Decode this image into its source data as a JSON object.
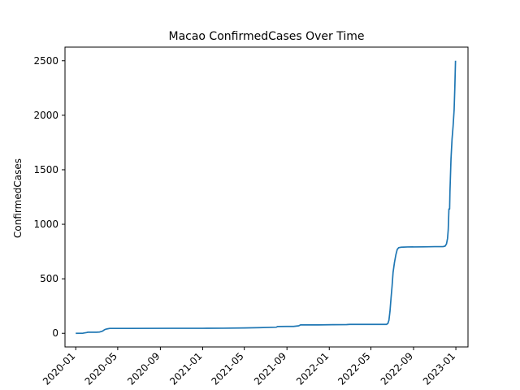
{
  "chart_data": {
    "type": "line",
    "title": "Macao  ConfirmedCases Over Time",
    "xlabel": "",
    "ylabel": "ConfirmedCases",
    "ylim": [
      -125,
      2625
    ],
    "xlim": [
      "2019-12-01",
      "2023-02-05"
    ],
    "grid": false,
    "legend": "none",
    "x_ticks": [
      "2020-01",
      "2020-05",
      "2020-09",
      "2021-01",
      "2021-05",
      "2021-09",
      "2022-01",
      "2022-05",
      "2022-09",
      "2023-01"
    ],
    "y_ticks": [
      0,
      500,
      1000,
      1500,
      2000,
      2500
    ],
    "series": [
      {
        "color": "#1f77b4",
        "points": [
          [
            "2020-01-01",
            0
          ],
          [
            "2020-01-22",
            1
          ],
          [
            "2020-02-01",
            7
          ],
          [
            "2020-02-05",
            10
          ],
          [
            "2020-03-01",
            10
          ],
          [
            "2020-03-10",
            12
          ],
          [
            "2020-03-18",
            20
          ],
          [
            "2020-03-25",
            35
          ],
          [
            "2020-04-01",
            41
          ],
          [
            "2020-04-08",
            45
          ],
          [
            "2020-06-01",
            45
          ],
          [
            "2020-10-01",
            46
          ],
          [
            "2021-01-01",
            46
          ],
          [
            "2021-03-01",
            47
          ],
          [
            "2021-05-01",
            49
          ],
          [
            "2021-06-15",
            52
          ],
          [
            "2021-08-01",
            56
          ],
          [
            "2021-08-05",
            62
          ],
          [
            "2021-09-01",
            63
          ],
          [
            "2021-09-20",
            63
          ],
          [
            "2021-10-05",
            69
          ],
          [
            "2021-10-10",
            77
          ],
          [
            "2021-12-01",
            77
          ],
          [
            "2022-01-10",
            79
          ],
          [
            "2022-02-20",
            80
          ],
          [
            "2022-03-01",
            82
          ],
          [
            "2022-06-15",
            82
          ],
          [
            "2022-06-19",
            90
          ],
          [
            "2022-06-22",
            120
          ],
          [
            "2022-06-25",
            200
          ],
          [
            "2022-06-28",
            320
          ],
          [
            "2022-07-01",
            430
          ],
          [
            "2022-07-04",
            560
          ],
          [
            "2022-07-08",
            650
          ],
          [
            "2022-07-12",
            720
          ],
          [
            "2022-07-16",
            770
          ],
          [
            "2022-07-20",
            785
          ],
          [
            "2022-07-28",
            790
          ],
          [
            "2022-08-15",
            792
          ],
          [
            "2022-10-01",
            793
          ],
          [
            "2022-11-01",
            795
          ],
          [
            "2022-11-25",
            795
          ],
          [
            "2022-12-01",
            800
          ],
          [
            "2022-12-05",
            820
          ],
          [
            "2022-12-08",
            870
          ],
          [
            "2022-12-10",
            950
          ],
          [
            "2022-12-12",
            1140
          ],
          [
            "2022-12-14",
            1140
          ],
          [
            "2022-12-15",
            1300
          ],
          [
            "2022-12-18",
            1600
          ],
          [
            "2022-12-21",
            1780
          ],
          [
            "2022-12-24",
            1900
          ],
          [
            "2022-12-27",
            2050
          ],
          [
            "2022-12-29",
            2250
          ],
          [
            "2022-12-31",
            2500
          ]
        ]
      }
    ]
  }
}
